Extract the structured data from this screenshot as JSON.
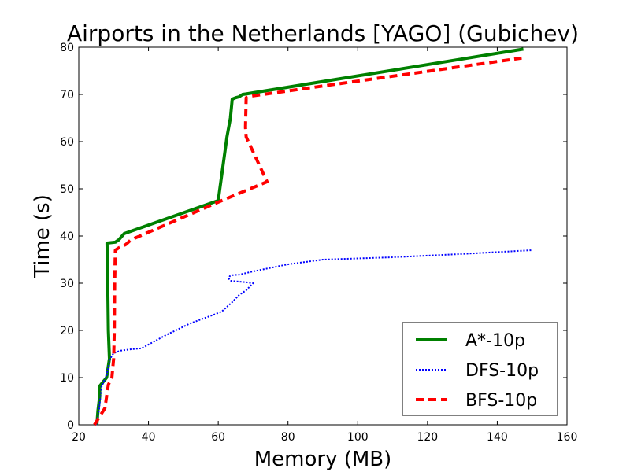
{
  "chart_data": {
    "type": "line",
    "title": "Airports in the Netherlands [YAGO] (Gubichev)",
    "xlabel": "Memory (MB)",
    "ylabel": "Time (s)",
    "xlim": [
      20,
      160
    ],
    "ylim": [
      0,
      80
    ],
    "xticks": [
      20,
      40,
      60,
      80,
      100,
      120,
      140,
      160
    ],
    "yticks": [
      0,
      10,
      20,
      30,
      40,
      50,
      60,
      70,
      80
    ],
    "grid": false,
    "legend_position": "lower-right",
    "series": [
      {
        "name": "A*-10p",
        "color": "#008000",
        "style": "solid",
        "x": [
          25.2,
          25.5,
          26,
          26,
          28,
          28.8,
          28.5,
          28.3,
          28.1,
          30.5,
          31.5,
          33,
          60,
          62.5,
          63,
          63.5,
          64,
          65,
          66,
          67,
          68,
          147.5
        ],
        "y": [
          0,
          3,
          6,
          8.2,
          10,
          14,
          20,
          30,
          38.5,
          38.7,
          39.2,
          40.5,
          47.5,
          61,
          63,
          65,
          69,
          69.3,
          69.5,
          70,
          70.1,
          79.6
        ]
      },
      {
        "name": "DFS-10p",
        "color": "#0000ff",
        "style": "dotted",
        "x": [
          25,
          25.8,
          26.5,
          28,
          29,
          30,
          32,
          35,
          38,
          45,
          52,
          59,
          61,
          64,
          66,
          68,
          70,
          68,
          65,
          63.5,
          63,
          63.3,
          64,
          66,
          70,
          80,
          90,
          110,
          130,
          150
        ],
        "y": [
          0,
          3,
          8,
          10.5,
          14,
          15.2,
          15.7,
          16,
          16.2,
          19,
          21.5,
          23.4,
          24,
          26,
          27.5,
          28.5,
          30,
          30.2,
          30.4,
          30.5,
          31,
          31.5,
          31.7,
          31.8,
          32.5,
          34,
          35,
          35.5,
          36.2,
          37
        ]
      },
      {
        "name": "BFS-10p",
        "color": "#ff0000",
        "style": "dashed",
        "x": [
          24.5,
          26.2,
          27.5,
          28.5,
          29.5,
          30,
          30.2,
          30.3,
          30.5,
          31.5,
          33.5,
          35,
          61,
          74,
          68,
          67.8,
          68,
          69,
          147
        ],
        "y": [
          0,
          2,
          3.5,
          8.5,
          10,
          14,
          20,
          30,
          37,
          37.5,
          38.2,
          39.2,
          47.5,
          51.5,
          61,
          63,
          69.3,
          69.6,
          77.7
        ]
      }
    ]
  }
}
